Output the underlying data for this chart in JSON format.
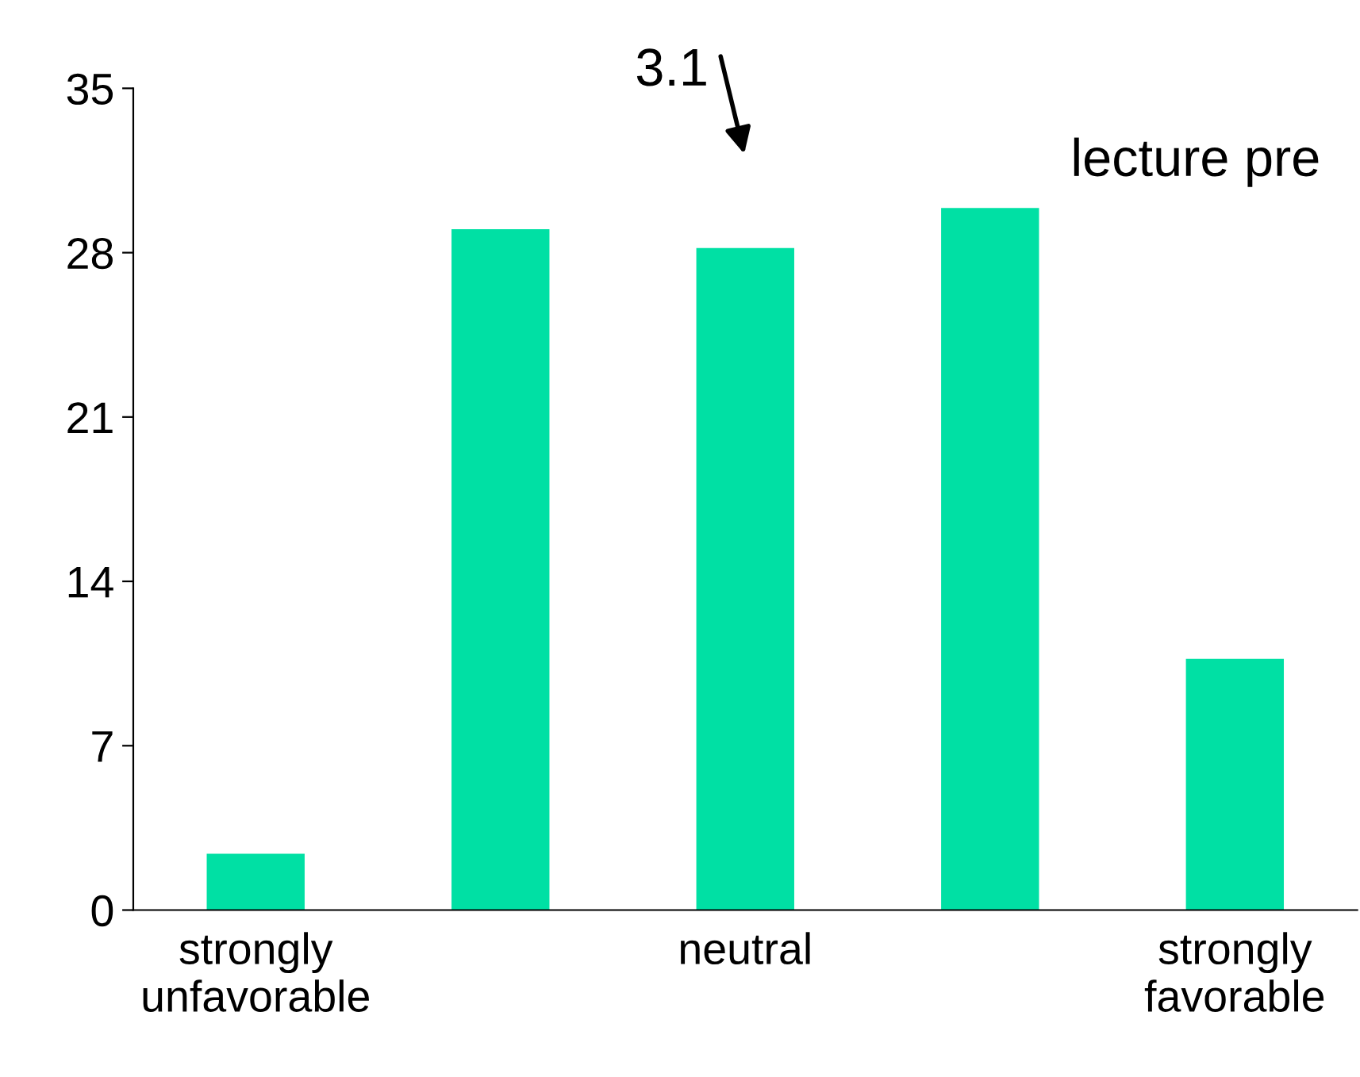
{
  "chart_data": {
    "type": "bar",
    "title": "lecture pre",
    "categories": [
      "strongly\nunfavorable",
      null,
      "neutral",
      null,
      "strongly\nfavorable"
    ],
    "values": [
      2.4,
      29.0,
      28.2,
      29.9,
      10.7
    ],
    "color": "#00e0a4",
    "ylim": [
      0,
      35
    ],
    "yticks": [
      0,
      7,
      14,
      21,
      28,
      35
    ],
    "grid": false,
    "annotations": [
      "3.1"
    ]
  }
}
